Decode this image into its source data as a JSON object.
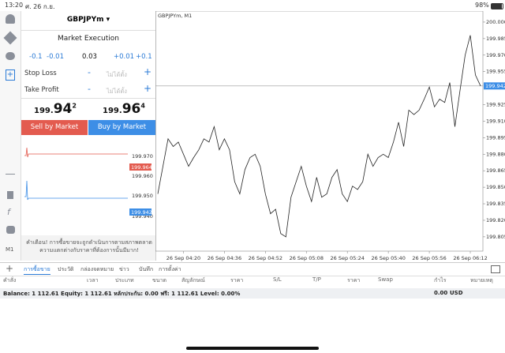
{
  "status_bar": {
    "time": "13:20",
    "date": "ศ. 26 ก.ย.",
    "battery": "98%"
  },
  "order_panel": {
    "symbol": "GBPJPYm ▾",
    "execution": "Market Execution",
    "steps": [
      "-0.1",
      "-0.01",
      "0.03",
      "+0.01",
      "+0.1"
    ],
    "stop_loss": {
      "label": "Stop Loss",
      "minus": "-",
      "value": "ไม่ได้ตั้ง",
      "plus": "+"
    },
    "take_profit": {
      "label": "Take Profit",
      "minus": "-",
      "value": "ไม่ได้ตั้ง",
      "plus": "+"
    },
    "bid": {
      "prefix": "199.",
      "big": "94",
      "sup": "2"
    },
    "ask": {
      "prefix": "199.",
      "big": "96",
      "sup": "4"
    },
    "sell_button": "Sell by Market",
    "buy_button": "Buy by Market",
    "mini_chart": {
      "labels": [
        "199.970",
        "199.960",
        "199.950",
        "199.940"
      ],
      "ask_box": "199.964",
      "bid_box": "199.942"
    },
    "warning": "คำเตือน! การซื้อขายจะถูกดำเนินการตามสภาพตลาด ความแตกต่างกับราคาที่ต้องการนั้นมีมาก!"
  },
  "sidebar": {
    "timeframe": "M1"
  },
  "chart_data": {
    "type": "line",
    "title": "GBPJPYm, M1",
    "color": "#222222",
    "values": [
      199.844,
      199.869,
      199.894,
      199.887,
      199.891,
      199.88,
      199.869,
      199.877,
      199.884,
      199.894,
      199.891,
      199.905,
      199.884,
      199.894,
      199.884,
      199.855,
      199.844,
      199.866,
      199.877,
      199.88,
      199.869,
      199.844,
      199.826,
      199.83,
      199.808,
      199.805,
      199.841,
      199.855,
      199.869,
      199.851,
      199.837,
      199.859,
      199.841,
      199.844,
      199.859,
      199.866,
      199.844,
      199.837,
      199.851,
      199.848,
      199.855,
      199.88,
      199.869,
      199.877,
      199.88,
      199.877,
      199.891,
      199.909,
      199.887,
      199.92,
      199.916,
      199.92,
      199.93,
      199.941,
      199.923,
      199.93,
      199.927,
      199.945,
      199.905,
      199.938,
      199.97,
      199.988,
      199.952,
      199.942
    ],
    "xticks": [
      {
        "value": 5,
        "label": "26 Sep 04:20"
      },
      {
        "value": 13,
        "label": "26 Sep 04:36"
      },
      {
        "value": 21,
        "label": "26 Sep 04:52"
      },
      {
        "value": 29,
        "label": "26 Sep 05:08"
      },
      {
        "value": 37,
        "label": "26 Sep 05:24"
      },
      {
        "value": 45,
        "label": "26 Sep 05:40"
      },
      {
        "value": 53,
        "label": "26 Sep 05:56"
      },
      {
        "value": 61,
        "label": "26 Sep 06:12"
      }
    ],
    "ylim": [
      199.792,
      200.01
    ],
    "yticks": [
      {
        "value": 200,
        "label": "200.000"
      },
      199.985,
      {
        "value": 199.97,
        "label": "199.970"
      },
      199.955,
      199.925,
      {
        "value": 199.91,
        "label": "199.910"
      },
      199.895,
      {
        "value": 199.88,
        "label": "199.880"
      },
      199.865,
      {
        "value": 199.85,
        "label": "199.850"
      },
      199.835,
      {
        "value": 199.82,
        "label": "199.820"
      },
      199.805
    ],
    "current_price": {
      "value": 199.942,
      "label": "199.942"
    }
  },
  "tabs": [
    "การซื้อขาย",
    "ประวัติ",
    "กล่องจดหมาย",
    "ข่าว",
    "บันทึก",
    "การตั้งค่า"
  ],
  "columns": [
    "คำสั่ง",
    "เวลา",
    "ประเภท",
    "ขนาด",
    "สัญลักษณ์",
    "ราคา",
    "S/L",
    "T/P",
    "ราคา",
    "Swap",
    "กำไร",
    "หมายเหตุ"
  ],
  "balance": {
    "text": "Balance: 1 112.61 Equity: 1 112.61 หลักประกัน: 0.00 ฟรี: 1 112.61 Level: 0.00%",
    "profit": "0.00",
    "currency": "USD"
  }
}
